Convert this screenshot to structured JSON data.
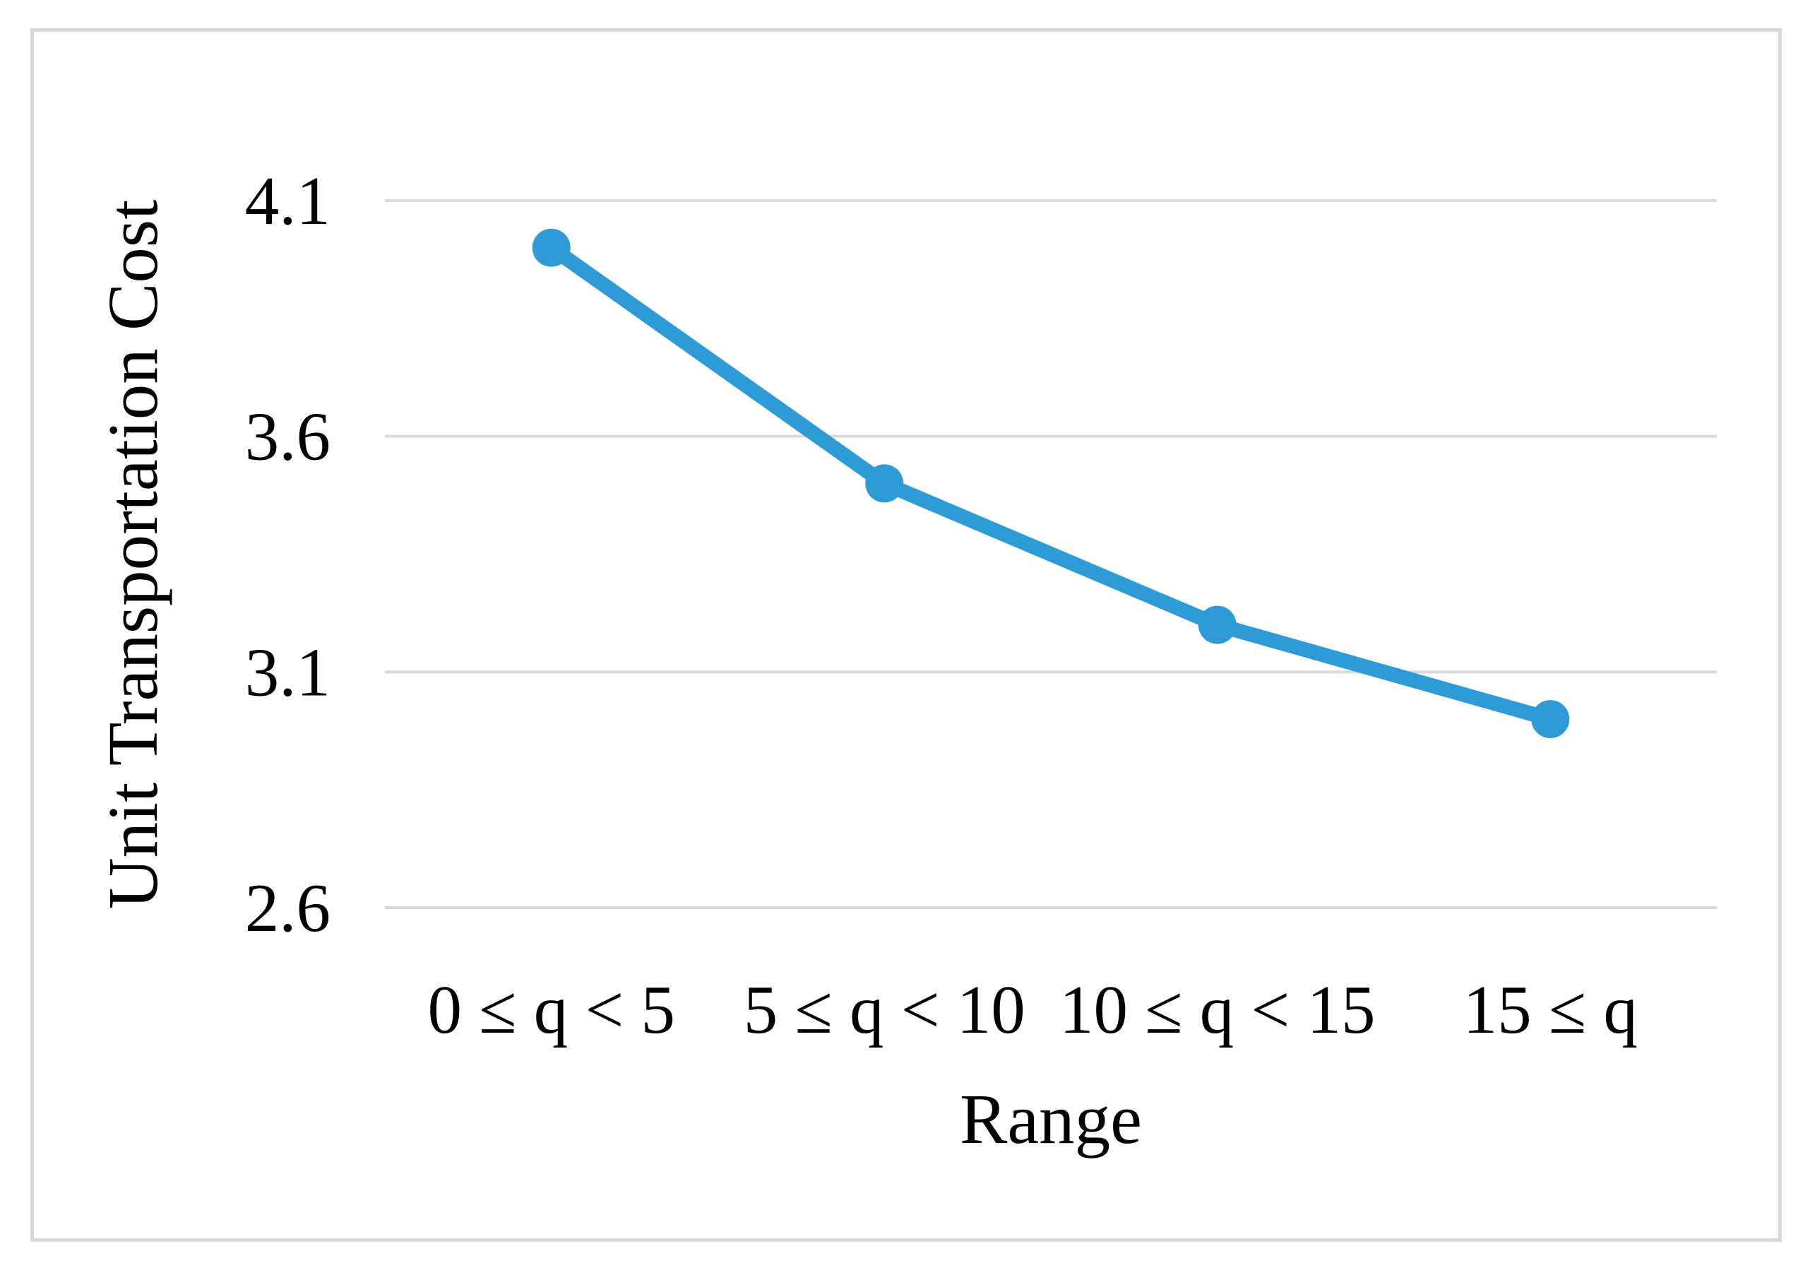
{
  "figure": {
    "background": "#FFFFFF",
    "border_color": "#D9D9D9"
  },
  "chart_data": {
    "type": "line",
    "title": "",
    "categories": [
      "0 ≤ q < 5",
      "5 ≤ q < 10",
      "10 ≤ q < 15",
      "15 ≤ q"
    ],
    "series": [
      {
        "name": "Unit Transportation Cost",
        "values": [
          4.0,
          3.5,
          3.2,
          3.0
        ],
        "color": "#2E9BD6",
        "marker": "circle"
      }
    ],
    "xlabel": "Range",
    "ylabel": "Unit Transportation Cost",
    "yticks": [
      4.1,
      3.6,
      3.1,
      2.6
    ],
    "ylim": [
      2.6,
      4.1
    ],
    "ytick_step": 0.5,
    "grid": true,
    "gridline_color": "#D9D9D9",
    "text_color": "#000000",
    "legend": false
  }
}
